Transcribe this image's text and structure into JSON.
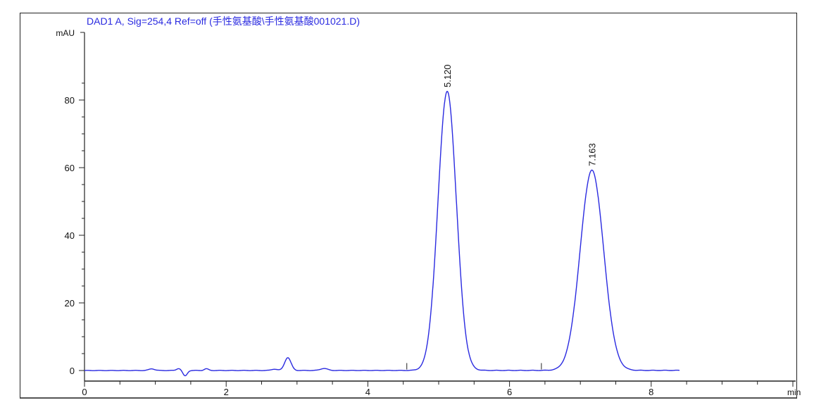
{
  "chart_data": {
    "type": "line",
    "title": "DAD1 A, Sig=254,4 Ref=off (手性氨基酸\\手性氨基酸001021.D)",
    "xlabel": "min",
    "ylabel": "mAU",
    "xlim": [
      0,
      10
    ],
    "ylim": [
      -3,
      88
    ],
    "xticks": [
      0,
      2,
      4,
      6,
      8
    ],
    "yticks": [
      0,
      20,
      40,
      60,
      80
    ],
    "grid": false,
    "line_color": "#2a2ae0",
    "trace_end": 8.4,
    "peaks": [
      {
        "rt": 0.95,
        "height": 0.5,
        "sigma": 0.04
      },
      {
        "rt": 1.33,
        "height": 0.6,
        "sigma": 0.03
      },
      {
        "rt": 1.42,
        "height": -1.6,
        "sigma": 0.03
      },
      {
        "rt": 1.72,
        "height": 0.5,
        "sigma": 0.03
      },
      {
        "rt": 2.68,
        "height": 0.4,
        "sigma": 0.04
      },
      {
        "rt": 2.87,
        "height": 3.8,
        "sigma": 0.045
      },
      {
        "rt": 3.38,
        "height": 0.6,
        "sigma": 0.05
      },
      {
        "rt": 5.12,
        "height": 82.5,
        "sigma": 0.13
      },
      {
        "rt": 7.163,
        "height": 59.2,
        "sigma": 0.165
      }
    ],
    "peak_labels": [
      "5.120",
      "7.163"
    ]
  }
}
